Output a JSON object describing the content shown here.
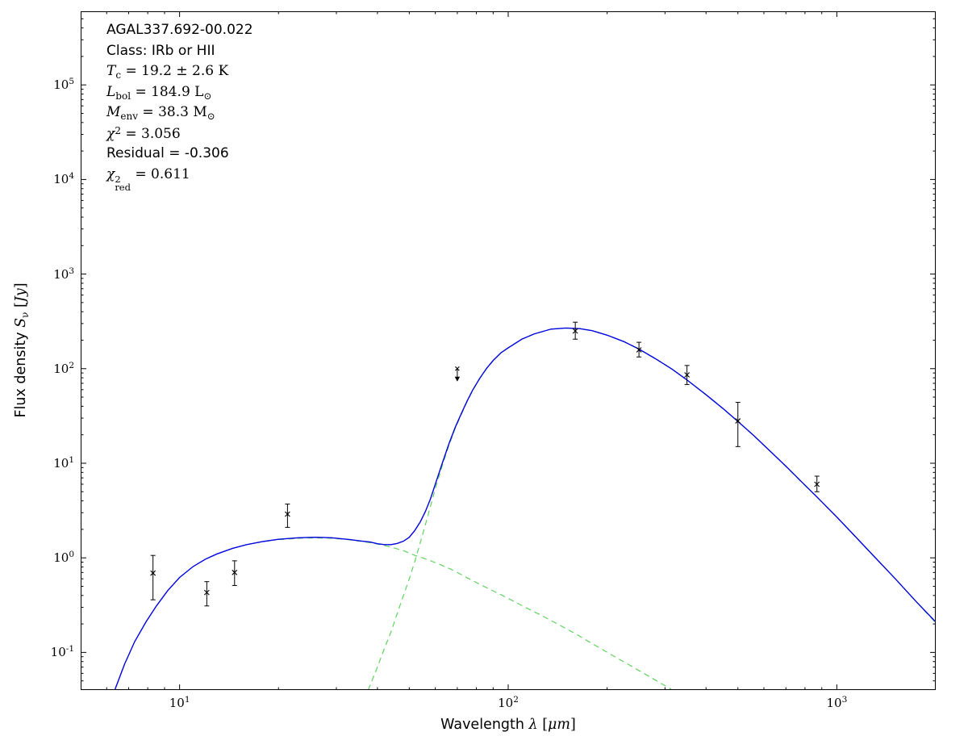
{
  "chart_data": {
    "type": "line",
    "title": "",
    "xscale": "log",
    "yscale": "log",
    "xlim": [
      5,
      2000
    ],
    "ylim": [
      0.04,
      600000
    ],
    "grid": false,
    "legend": null,
    "colors": {
      "total": "#0000e0",
      "components": "#5fd35f",
      "data": "#000000",
      "frame": "#000000"
    },
    "xlabel_parts": [
      {
        "s": "n",
        "t": "Wavelength "
      },
      {
        "s": "i",
        "t": "λ"
      },
      {
        "s": "r",
        "t": " ["
      },
      {
        "s": "i",
        "t": "μm"
      },
      {
        "s": "r",
        "t": "]"
      }
    ],
    "ylabel_parts": [
      {
        "s": "n",
        "t": "Flux density "
      },
      {
        "s": "i",
        "t": "S"
      },
      {
        "s": "sub",
        "t": "ν"
      },
      {
        "s": "r",
        "t": " ["
      },
      {
        "s": "i",
        "t": "Jy"
      },
      {
        "s": "r",
        "t": "]"
      }
    ],
    "x_ticks": [
      {
        "exponent": 1,
        "label": "10^1"
      },
      {
        "exponent": 2,
        "label": "10^2"
      },
      {
        "exponent": 3,
        "label": "10^3"
      }
    ],
    "y_ticks": [
      {
        "exponent": -1,
        "label": "10^-1"
      },
      {
        "exponent": 0,
        "label": "10^0"
      },
      {
        "exponent": 1,
        "label": "10^1"
      },
      {
        "exponent": 2,
        "label": "10^2"
      },
      {
        "exponent": 3,
        "label": "10^3"
      },
      {
        "exponent": 4,
        "label": "10^4"
      },
      {
        "exponent": 5,
        "label": "10^5"
      }
    ],
    "annotation_lines": [
      [
        {
          "s": "n",
          "t": "AGAL337.692-00.022"
        }
      ],
      [
        {
          "s": "n",
          "t": "Class: IRb or HII"
        }
      ],
      [
        {
          "s": "i",
          "t": "T"
        },
        {
          "s": "sub",
          "t": "c"
        },
        {
          "s": "r",
          "t": " = 19.2 ± 2.6 K"
        }
      ],
      [
        {
          "s": "i",
          "t": "L"
        },
        {
          "s": "sub",
          "t": "bol"
        },
        {
          "s": "r",
          "t": " = 184.9 L"
        },
        {
          "s": "sub",
          "t": "⊙"
        }
      ],
      [
        {
          "s": "i",
          "t": "M"
        },
        {
          "s": "sub",
          "t": "env"
        },
        {
          "s": "r",
          "t": " = 38.3 M"
        },
        {
          "s": "sub",
          "t": "⊙"
        }
      ],
      [
        {
          "s": "i",
          "t": "χ"
        },
        {
          "s": "sup",
          "t": "2"
        },
        {
          "s": "r",
          "t": " = 3.056"
        }
      ],
      [
        {
          "s": "n",
          "t": "Residual = -0.306"
        }
      ],
      [
        {
          "s": "i",
          "t": "χ"
        },
        {
          "s": "stack",
          "t": "",
          "sup": "2",
          "sub": "red"
        },
        {
          "s": "r",
          "t": " = 0.611"
        }
      ]
    ],
    "series": [
      {
        "name": "warm-component-model",
        "color": "#5fd35f",
        "style": "dashed",
        "points": [
          [
            20,
            1.56
          ],
          [
            24,
            1.62
          ],
          [
            28,
            1.62
          ],
          [
            32,
            1.565
          ],
          [
            36,
            1.49
          ],
          [
            40,
            1.4
          ],
          [
            44,
            1.3
          ],
          [
            48,
            1.19
          ],
          [
            52,
            1.06
          ],
          [
            57,
            0.955
          ],
          [
            62,
            0.85
          ],
          [
            68,
            0.74
          ],
          [
            75,
            0.615
          ],
          [
            82,
            0.525
          ],
          [
            90,
            0.447
          ],
          [
            100,
            0.373
          ],
          [
            112,
            0.303
          ],
          [
            126,
            0.247
          ],
          [
            142,
            0.198
          ],
          [
            160,
            0.158
          ],
          [
            180,
            0.124
          ],
          [
            205,
            0.0955
          ],
          [
            235,
            0.0728
          ],
          [
            270,
            0.0551
          ],
          [
            310,
            0.0417
          ],
          [
            345,
            0.0335
          ]
        ]
      },
      {
        "name": "cold-dust-component-model",
        "color": "#5fd35f",
        "style": "dashed",
        "points": [
          [
            37.5,
            0.04
          ],
          [
            40,
            0.07
          ],
          [
            42,
            0.11
          ],
          [
            44,
            0.165
          ],
          [
            46,
            0.26
          ],
          [
            48,
            0.4
          ],
          [
            50,
            0.6
          ],
          [
            52,
            0.92
          ],
          [
            54,
            1.45
          ],
          [
            56,
            2.25
          ],
          [
            58,
            3.5
          ],
          [
            60,
            5.4
          ],
          [
            63,
            9.4
          ],
          [
            66,
            15.4
          ],
          [
            69,
            23.4
          ],
          [
            72,
            32.9
          ],
          [
            75,
            44.9
          ],
          [
            78,
            59.0
          ],
          [
            82,
            79.0
          ],
          [
            86,
            100.5
          ],
          [
            90,
            121.5
          ],
          [
            95,
            146.6
          ],
          [
            100,
            165.6
          ],
          [
            110,
            204.7
          ],
          [
            120,
            232.8
          ],
          [
            135,
            261.8
          ],
          [
            150,
            268.8
          ],
          [
            165,
            264.8
          ],
          [
            180,
            251.9
          ],
          [
            200,
            225.9
          ],
          [
            225,
            192.9
          ],
          [
            250,
            160.9
          ],
          [
            280,
            127.9
          ],
          [
            315,
            98.9
          ],
          [
            350,
            75.9
          ],
          [
            400,
            52.9
          ],
          [
            450,
            37.9
          ],
          [
            500,
            27.6
          ],
          [
            560,
            19.4
          ],
          [
            630,
            13.2
          ],
          [
            700,
            9.25
          ],
          [
            780,
            6.35
          ],
          [
            870,
            4.38
          ],
          [
            1000,
            2.69
          ],
          [
            1150,
            1.61
          ],
          [
            1300,
            1.03
          ],
          [
            1500,
            0.61
          ],
          [
            1750,
            0.34
          ],
          [
            2000,
            0.205
          ]
        ]
      },
      {
        "name": "total-model-fit",
        "color": "#0000e0",
        "style": "solid",
        "points": [
          [
            6.35,
            0.04
          ],
          [
            6.8,
            0.075
          ],
          [
            7.3,
            0.13
          ],
          [
            7.9,
            0.21
          ],
          [
            8.5,
            0.31
          ],
          [
            9.2,
            0.45
          ],
          [
            10,
            0.62
          ],
          [
            11,
            0.81
          ],
          [
            12,
            0.97
          ],
          [
            13,
            1.1
          ],
          [
            14.5,
            1.26
          ],
          [
            16,
            1.38
          ],
          [
            18,
            1.49
          ],
          [
            20,
            1.57
          ],
          [
            23,
            1.63
          ],
          [
            26,
            1.65
          ],
          [
            29,
            1.63
          ],
          [
            33,
            1.56
          ],
          [
            36,
            1.5
          ],
          [
            38,
            1.47
          ],
          [
            40,
            1.41
          ],
          [
            42,
            1.38
          ],
          [
            44,
            1.38
          ],
          [
            46,
            1.42
          ],
          [
            48,
            1.5
          ],
          [
            50,
            1.65
          ],
          [
            52,
            1.95
          ],
          [
            54,
            2.4
          ],
          [
            56,
            3.1
          ],
          [
            58,
            4.2
          ],
          [
            60,
            6.0
          ],
          [
            63,
            10.0
          ],
          [
            66,
            16.0
          ],
          [
            69,
            24.0
          ],
          [
            72,
            33.5
          ],
          [
            75,
            45.5
          ],
          [
            78,
            59.5
          ],
          [
            82,
            79.5
          ],
          [
            86,
            101
          ],
          [
            90,
            122
          ],
          [
            95,
            147
          ],
          [
            100,
            166
          ],
          [
            110,
            205
          ],
          [
            120,
            233
          ],
          [
            135,
            262
          ],
          [
            150,
            269
          ],
          [
            165,
            265
          ],
          [
            180,
            252
          ],
          [
            200,
            226
          ],
          [
            225,
            193
          ],
          [
            250,
            161
          ],
          [
            280,
            128
          ],
          [
            315,
            99
          ],
          [
            350,
            76
          ],
          [
            400,
            53
          ],
          [
            450,
            38
          ],
          [
            500,
            27.7
          ],
          [
            560,
            19.5
          ],
          [
            630,
            13.2
          ],
          [
            700,
            9.3
          ],
          [
            780,
            6.4
          ],
          [
            870,
            4.4
          ],
          [
            1000,
            2.7
          ],
          [
            1150,
            1.62
          ],
          [
            1300,
            1.03
          ],
          [
            1500,
            0.61
          ],
          [
            1750,
            0.34
          ],
          [
            2000,
            0.21
          ]
        ]
      }
    ],
    "data_points": [
      {
        "x": 8.3,
        "y": 0.69,
        "ylo": 0.36,
        "yhi": 1.06
      },
      {
        "x": 12.1,
        "y": 0.43,
        "ylo": 0.31,
        "yhi": 0.56
      },
      {
        "x": 14.7,
        "y": 0.7,
        "ylo": 0.51,
        "yhi": 0.93
      },
      {
        "x": 21.3,
        "y": 2.9,
        "ylo": 2.1,
        "yhi": 3.7
      },
      {
        "x": 160,
        "y": 250,
        "ylo": 205,
        "yhi": 310
      },
      {
        "x": 250,
        "y": 158,
        "ylo": 133,
        "yhi": 190
      },
      {
        "x": 350,
        "y": 86,
        "ylo": 68,
        "yhi": 108
      },
      {
        "x": 500,
        "y": 28,
        "ylo": 15,
        "yhi": 44
      },
      {
        "x": 870,
        "y": 6.0,
        "ylo": 5.0,
        "yhi": 7.3
      }
    ],
    "upper_limits": [
      {
        "x": 70,
        "y": 100
      }
    ]
  }
}
